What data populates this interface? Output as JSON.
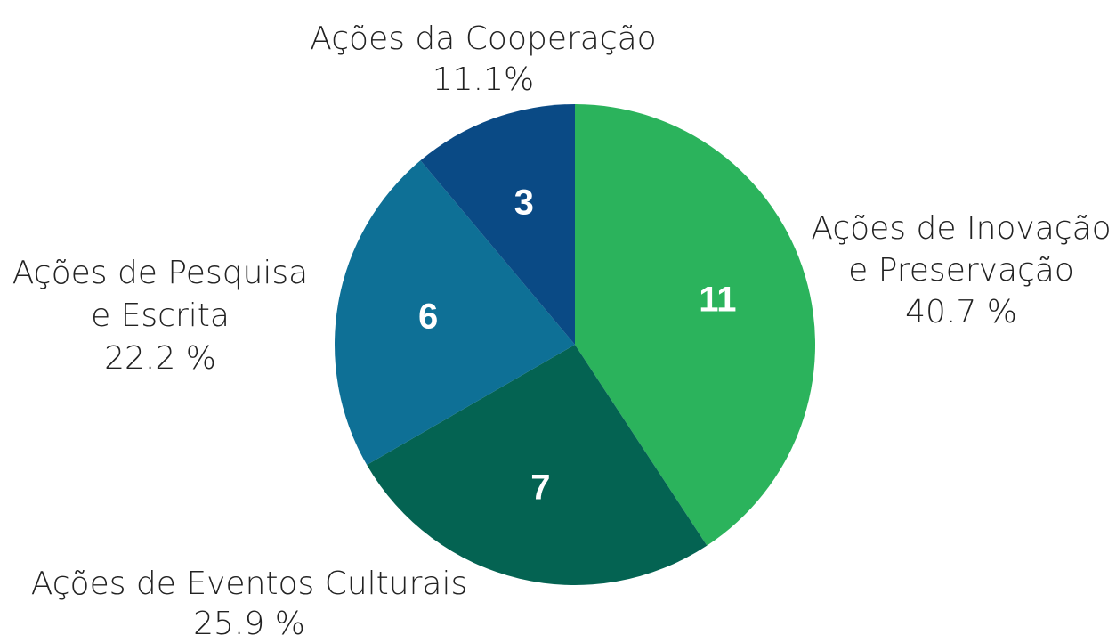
{
  "chart_data": {
    "type": "pie",
    "categories": [
      "Ações de Inovação\ne Preservação",
      "Ações de Eventos Culturais",
      "Ações de Pesquisa\ne Escrita",
      "Ações da Cooperação"
    ],
    "values": [
      11,
      7,
      6,
      3
    ],
    "percent_labels": [
      "40.7 %",
      "25.9 %",
      "22.2 %",
      "11.1%"
    ],
    "colors": [
      "#2bb35c",
      "#046352",
      "#0e7096",
      "#0a4a85"
    ]
  }
}
